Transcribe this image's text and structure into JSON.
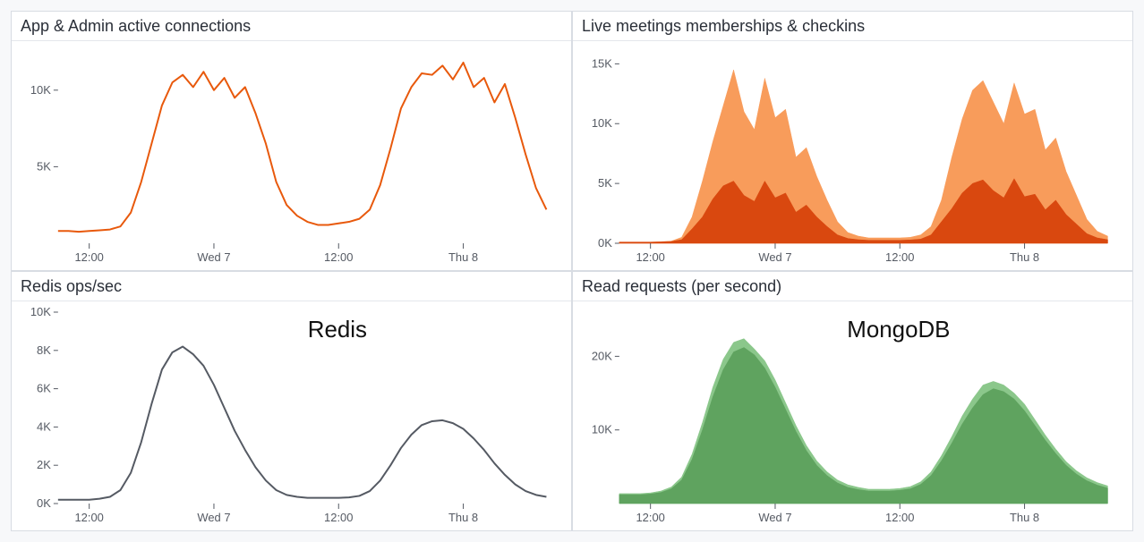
{
  "background_color": "#f7f8fa",
  "panel_border_color": "#d8dce3",
  "text_color": "#2a2f38",
  "axis_color": "#555a63",
  "x_range": [
    0,
    48
  ],
  "x_ticks": [
    {
      "pos": 3,
      "label": "12:00"
    },
    {
      "pos": 15,
      "label": "Wed 7"
    },
    {
      "pos": 27,
      "label": "12:00"
    },
    {
      "pos": 39,
      "label": "Thu 8"
    }
  ],
  "panels": {
    "connections": {
      "title": "App & Admin active connections",
      "type": "line",
      "y_range": [
        0,
        12500
      ],
      "y_ticks": [
        {
          "pos": 5000,
          "label": "5K"
        },
        {
          "pos": 10000,
          "label": "10K"
        }
      ],
      "line_color": "#e8590c",
      "line_width": 2,
      "data": [
        800,
        800,
        750,
        800,
        850,
        900,
        1100,
        2000,
        4000,
        6500,
        9000,
        10500,
        11000,
        10200,
        11200,
        10000,
        10800,
        9500,
        10200,
        8500,
        6500,
        4000,
        2500,
        1800,
        1400,
        1200,
        1200,
        1300,
        1400,
        1600,
        2200,
        3800,
        6200,
        8800,
        10200,
        11100,
        11000,
        11600,
        10700,
        11800,
        10200,
        10800,
        9200,
        10400,
        8200,
        5800,
        3600,
        2200
      ]
    },
    "meetings": {
      "title": "Live meetings memberships & checkins",
      "type": "stacked_area",
      "y_range": [
        0,
        16000
      ],
      "y_ticks": [
        {
          "pos": 0,
          "label": "0K"
        },
        {
          "pos": 5000,
          "label": "5K"
        },
        {
          "pos": 10000,
          "label": "10K"
        },
        {
          "pos": 15000,
          "label": "15K"
        }
      ],
      "series": [
        {
          "fill": "#d9480f",
          "data": [
            100,
            100,
            100,
            100,
            120,
            150,
            300,
            1200,
            2200,
            3700,
            4800,
            5200,
            4000,
            3500,
            5200,
            3800,
            4200,
            2600,
            3200,
            2200,
            1400,
            700,
            400,
            300,
            250,
            250,
            250,
            250,
            280,
            350,
            700,
            1800,
            2900,
            4200,
            5000,
            5300,
            4400,
            3800,
            5400,
            3900,
            4100,
            2800,
            3600,
            2400,
            1600,
            800,
            450,
            300
          ]
        },
        {
          "fill": "#f89c5b",
          "data": [
            100,
            100,
            100,
            100,
            130,
            180,
            500,
            2200,
            5200,
            8500,
            11500,
            14500,
            11000,
            9500,
            13800,
            10500,
            11200,
            7200,
            8000,
            5600,
            3600,
            1800,
            900,
            600,
            450,
            450,
            450,
            450,
            500,
            700,
            1400,
            3600,
            7200,
            10400,
            12800,
            13600,
            11800,
            10000,
            13400,
            10800,
            11200,
            7800,
            8800,
            6000,
            4000,
            2000,
            1000,
            600
          ]
        }
      ]
    },
    "redis": {
      "title": "Redis ops/sec",
      "type": "line",
      "overlay_label": "Redis",
      "y_range": [
        0,
        10000
      ],
      "y_ticks": [
        {
          "pos": 0,
          "label": "0K"
        },
        {
          "pos": 2000,
          "label": "2K"
        },
        {
          "pos": 4000,
          "label": "4K"
        },
        {
          "pos": 6000,
          "label": "6K"
        },
        {
          "pos": 8000,
          "label": "8K"
        },
        {
          "pos": 10000,
          "label": "10K"
        }
      ],
      "line_color": "#555a63",
      "line_width": 2,
      "data": [
        200,
        200,
        200,
        200,
        250,
        350,
        700,
        1600,
        3200,
        5200,
        7000,
        7900,
        8200,
        7800,
        7200,
        6200,
        5000,
        3800,
        2800,
        1900,
        1200,
        700,
        450,
        350,
        300,
        300,
        300,
        300,
        320,
        400,
        650,
        1200,
        2000,
        2900,
        3600,
        4100,
        4300,
        4350,
        4200,
        3900,
        3400,
        2800,
        2100,
        1500,
        1000,
        650,
        450,
        350
      ]
    },
    "mongo": {
      "title": "Read requests (per second)",
      "type": "stacked_area_nofill_axis",
      "overlay_label": "MongoDB",
      "y_range": [
        0,
        26000
      ],
      "y_ticks": [
        {
          "pos": 10000,
          "label": "10K"
        },
        {
          "pos": 20000,
          "label": "20K"
        }
      ],
      "series": [
        {
          "fill": "#5fa35f",
          "data": [
            1200,
            1200,
            1200,
            1300,
            1500,
            2000,
            3200,
            6000,
            10000,
            14500,
            18200,
            20600,
            21200,
            20200,
            18400,
            15800,
            12800,
            9800,
            7200,
            5200,
            3800,
            2800,
            2200,
            1900,
            1700,
            1700,
            1700,
            1800,
            2000,
            2600,
            3800,
            5800,
            8200,
            10800,
            13000,
            14800,
            15600,
            15200,
            14200,
            12600,
            10600,
            8600,
            6800,
            5200,
            4000,
            3100,
            2500,
            2100
          ]
        },
        {
          "fill": "#8bc78b",
          "data": [
            1350,
            1350,
            1350,
            1450,
            1700,
            2250,
            3600,
            6700,
            11000,
            15800,
            19600,
            21900,
            22400,
            21000,
            19400,
            16800,
            13700,
            10600,
            7900,
            5800,
            4300,
            3200,
            2550,
            2200,
            1950,
            1950,
            1950,
            2050,
            2300,
            2950,
            4300,
            6500,
            9100,
            11900,
            14200,
            16100,
            16600,
            16100,
            15000,
            13500,
            11400,
            9300,
            7400,
            5700,
            4450,
            3500,
            2850,
            2400
          ]
        }
      ]
    }
  }
}
